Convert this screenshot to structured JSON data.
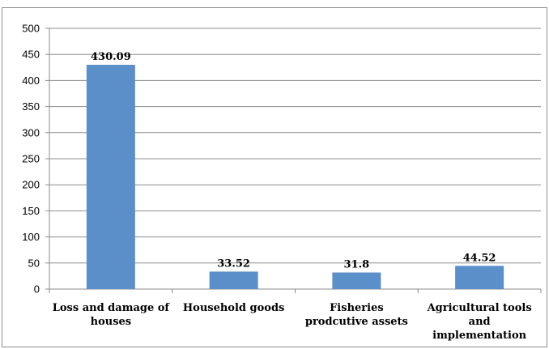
{
  "chart_data": {
    "type": "bar",
    "categories": [
      [
        "Loss and damage of",
        "houses"
      ],
      [
        "Household goods"
      ],
      [
        "Fisheries",
        "prodcutive assets"
      ],
      [
        "Agricultural tools",
        "and",
        "implementation"
      ]
    ],
    "values": [
      430.09,
      33.52,
      31.8,
      44.52
    ],
    "value_labels": [
      "430.09",
      "33.52",
      "31.8",
      "44.52"
    ],
    "ylim": [
      0,
      500
    ],
    "yticks": [
      "0",
      "50",
      "100",
      "150",
      "200",
      "250",
      "300",
      "350",
      "400",
      "450",
      "500"
    ],
    "grid": true,
    "bar_color": "#5b8fc9",
    "legend": "none",
    "title": "",
    "xlabel": "",
    "ylabel": ""
  }
}
